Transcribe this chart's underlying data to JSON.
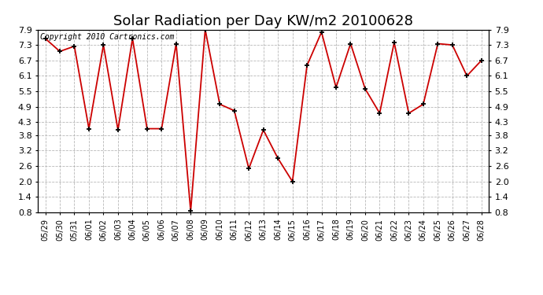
{
  "title": "Solar Radiation per Day KW/m2 20100628",
  "copyright": "Copyright 2010 Cartronics.com",
  "dates": [
    "05/29",
    "05/30",
    "05/31",
    "06/01",
    "06/02",
    "06/03",
    "06/04",
    "06/05",
    "06/06",
    "06/07",
    "06/08",
    "06/09",
    "06/10",
    "06/11",
    "06/12",
    "06/13",
    "06/14",
    "06/15",
    "06/16",
    "06/17",
    "06/18",
    "06/19",
    "06/20",
    "06/21",
    "06/22",
    "06/23",
    "06/24",
    "06/25",
    "06/26",
    "06/27",
    "06/28"
  ],
  "values": [
    7.55,
    7.05,
    7.25,
    4.05,
    7.3,
    4.0,
    7.55,
    4.05,
    4.05,
    7.35,
    0.85,
    7.9,
    5.0,
    4.75,
    2.5,
    4.0,
    2.9,
    2.0,
    6.5,
    7.8,
    5.65,
    7.35,
    5.6,
    4.65,
    7.4,
    4.65,
    5.0,
    7.35,
    7.3,
    6.1,
    6.7
  ],
  "ylim": [
    0.8,
    7.9
  ],
  "yticks": [
    0.8,
    1.4,
    2.0,
    2.6,
    3.2,
    3.8,
    4.3,
    4.9,
    5.5,
    6.1,
    6.7,
    7.3,
    7.9
  ],
  "line_color": "#cc0000",
  "marker": "+",
  "bg_color": "#ffffff",
  "plot_bg_color": "#ffffff",
  "grid_color": "#b0b0b0",
  "title_fontsize": 13,
  "tick_fontsize": 8,
  "copyright_fontsize": 7
}
